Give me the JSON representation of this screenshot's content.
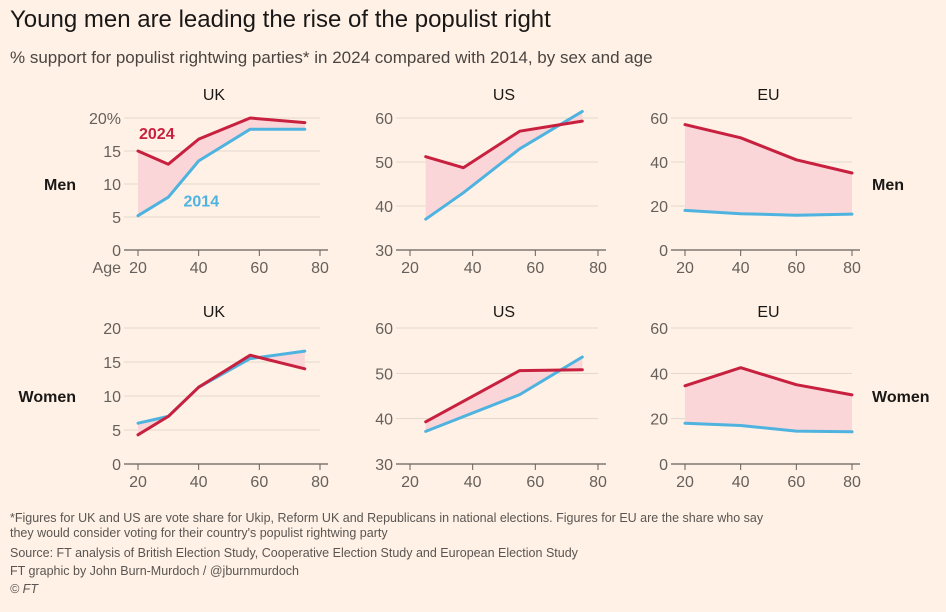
{
  "header": {
    "title": "Young men are leading the rise of the populist right",
    "subtitle": "% support for populist rightwing parties* in 2024 compared with 2014, by sex and age"
  },
  "footer": {
    "note_line1": "*Figures for UK and US are vote share for Ukip, Reform UK and Republicans in national elections. Figures for EU are the share who say",
    "note_line2": "they would consider voting for their country's populist rightwing party",
    "source": "Source: FT analysis of British Election Study, Cooperative Election Study and European Election Study",
    "credit": "FT graphic by John Burn-Murdoch / @jburnmurdoch",
    "copyright": "© FT"
  },
  "colors": {
    "series_2024": "#c8203f",
    "series_2014": "#4fb3e0",
    "fill": "#fbd6d8",
    "background": "#fff1e5",
    "axis": "#66605c"
  },
  "chart_data": [
    {
      "type": "line",
      "panel": "UK",
      "row_label": "Men",
      "title": "UK",
      "xlim": [
        20,
        80
      ],
      "xticks": [
        20,
        40,
        60,
        80
      ],
      "x_axis_prefix": "Age",
      "ylim": [
        0,
        20
      ],
      "yticks": [
        0,
        5,
        10,
        15,
        20
      ],
      "ytick_top_suffix": "%",
      "series": [
        {
          "name": "2024",
          "x": [
            20,
            30,
            40,
            57,
            75
          ],
          "values": [
            15,
            13,
            16.8,
            20,
            19.3
          ]
        },
        {
          "name": "2014",
          "x": [
            20,
            30,
            40,
            57,
            75
          ],
          "values": [
            5.2,
            8,
            13.5,
            18.3,
            18.3
          ]
        }
      ]
    },
    {
      "type": "line",
      "panel": "US",
      "title": "US",
      "xlim": [
        20,
        80
      ],
      "xticks": [
        20,
        40,
        60,
        80
      ],
      "ylim": [
        30,
        60
      ],
      "yticks": [
        30,
        40,
        50,
        60
      ],
      "series": [
        {
          "name": "2024",
          "x": [
            25,
            37,
            55,
            75
          ],
          "values": [
            51.2,
            48.7,
            57,
            59.3
          ]
        },
        {
          "name": "2014",
          "x": [
            25,
            37,
            55,
            75
          ],
          "values": [
            37,
            43,
            53,
            61.5
          ]
        }
      ]
    },
    {
      "type": "line",
      "panel": "EU",
      "row_label": "Men",
      "title": "EU",
      "xlim": [
        20,
        80
      ],
      "xticks": [
        20,
        40,
        60,
        80
      ],
      "ylim": [
        0,
        60
      ],
      "yticks": [
        0,
        20,
        40,
        60
      ],
      "series": [
        {
          "name": "2024",
          "x": [
            20,
            40,
            60,
            80
          ],
          "values": [
            57,
            51,
            41,
            35
          ]
        },
        {
          "name": "2014",
          "x": [
            20,
            40,
            60,
            80
          ],
          "values": [
            18,
            16.5,
            15.8,
            16.3
          ]
        }
      ]
    },
    {
      "type": "line",
      "panel": "UK",
      "row_label": "Women",
      "title": "UK",
      "xlim": [
        20,
        80
      ],
      "xticks": [
        20,
        40,
        60,
        80
      ],
      "ylim": [
        0,
        20
      ],
      "yticks": [
        0,
        5,
        10,
        15,
        20
      ],
      "series": [
        {
          "name": "2024",
          "x": [
            20,
            30,
            40,
            57,
            75
          ],
          "values": [
            4.3,
            7,
            11.3,
            16,
            14
          ]
        },
        {
          "name": "2014",
          "x": [
            20,
            30,
            40,
            57,
            75
          ],
          "values": [
            6,
            7,
            11.3,
            15.5,
            16.6
          ]
        }
      ]
    },
    {
      "type": "line",
      "panel": "US",
      "title": "US",
      "xlim": [
        20,
        80
      ],
      "xticks": [
        20,
        40,
        60,
        80
      ],
      "ylim": [
        30,
        60
      ],
      "yticks": [
        30,
        40,
        50,
        60
      ],
      "series": [
        {
          "name": "2024",
          "x": [
            25,
            55,
            75
          ],
          "values": [
            39.3,
            50.6,
            50.8
          ]
        },
        {
          "name": "2014",
          "x": [
            25,
            55,
            75
          ],
          "values": [
            37.2,
            45.3,
            53.6
          ]
        }
      ]
    },
    {
      "type": "line",
      "panel": "EU",
      "row_label": "Women",
      "title": "EU",
      "xlim": [
        20,
        80
      ],
      "xticks": [
        20,
        40,
        60,
        80
      ],
      "ylim": [
        0,
        60
      ],
      "yticks": [
        0,
        20,
        40,
        60
      ],
      "series": [
        {
          "name": "2024",
          "x": [
            20,
            40,
            60,
            80
          ],
          "values": [
            34.5,
            42.5,
            35,
            30.5
          ]
        },
        {
          "name": "2014",
          "x": [
            20,
            40,
            60,
            80
          ],
          "values": [
            18,
            17,
            14.5,
            14.2
          ]
        }
      ]
    }
  ]
}
